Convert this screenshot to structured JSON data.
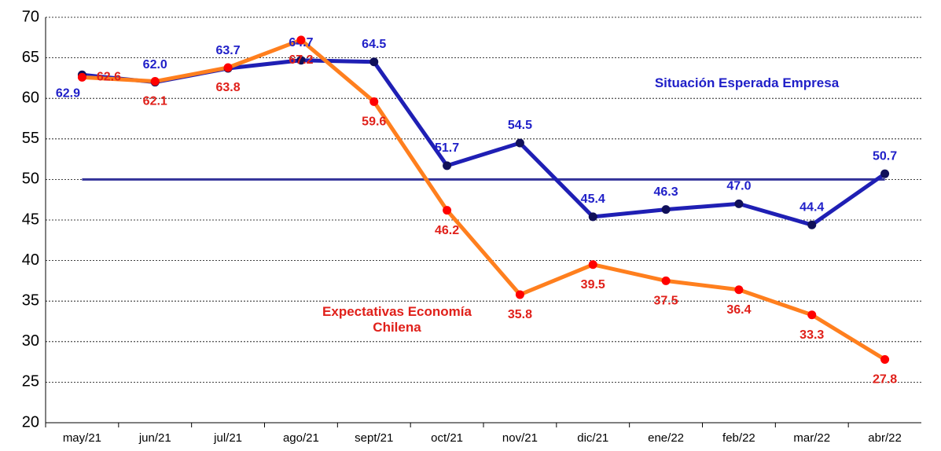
{
  "chart_data": {
    "type": "line",
    "categories": [
      "may/21",
      "jun/21",
      "jul/21",
      "ago/21",
      "sept/21",
      "oct/21",
      "nov/21",
      "dic/21",
      "ene/22",
      "feb/22",
      "mar/22",
      "abr/22"
    ],
    "series": [
      {
        "name": "Situación Esperada Empresa",
        "color": "#1f1fb4",
        "marker_color": "#10105a",
        "label_color": "#1f1fc8",
        "values": [
          62.9,
          62.0,
          63.7,
          64.7,
          64.5,
          51.7,
          54.5,
          45.4,
          46.3,
          47.0,
          44.4,
          50.7
        ],
        "value_labels": [
          "62.9",
          "62.0",
          "63.7",
          "64.7",
          "64.5",
          "51.7",
          "54.5",
          "45.4",
          "46.3",
          "47.0",
          "44.4",
          "50.7"
        ]
      },
      {
        "name": "Expectativas Economía Chilena",
        "color": "#ff7f1e",
        "marker_color": "#ff0000",
        "label_color": "#e0201a",
        "values": [
          62.6,
          62.1,
          63.8,
          67.2,
          59.6,
          46.2,
          35.8,
          39.5,
          37.5,
          36.4,
          33.3,
          27.8
        ],
        "value_labels": [
          "62.6",
          "62.1",
          "63.8",
          "67.2",
          "59.6",
          "46.2",
          "35.8",
          "39.5",
          "37.5",
          "36.4",
          "33.3",
          "27.8"
        ]
      }
    ],
    "reference_line": 50,
    "reference_color": "#333399",
    "ylim": [
      20,
      70
    ],
    "yticks": [
      20,
      25,
      30,
      35,
      40,
      45,
      50,
      55,
      60,
      65,
      70
    ],
    "grid": true
  }
}
